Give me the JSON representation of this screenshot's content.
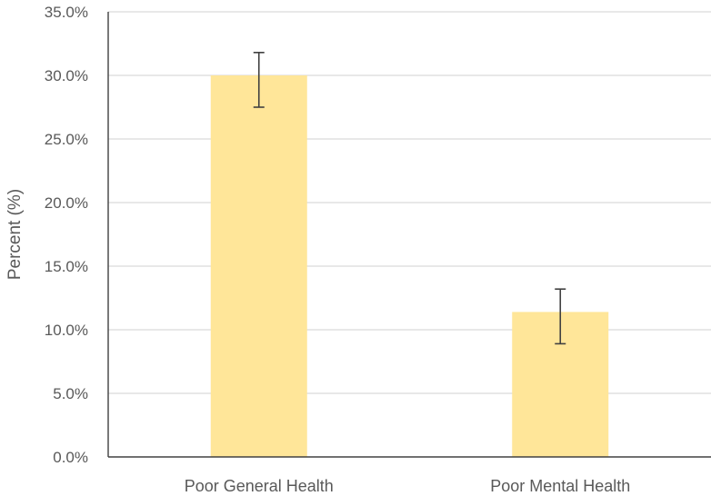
{
  "chart_data": {
    "type": "bar",
    "title": "",
    "xlabel": "",
    "ylabel": "Percent (%)",
    "categories": [
      "Poor General Health",
      "Poor Mental Health"
    ],
    "values": [
      30.0,
      11.4
    ],
    "error_bars": [
      {
        "low": 27.5,
        "high": 31.8
      },
      {
        "low": 8.9,
        "high": 13.2
      }
    ],
    "ylim": [
      0,
      35
    ],
    "yticks": [
      0,
      5,
      10,
      15,
      20,
      25,
      30,
      35
    ],
    "ytick_labels": [
      "0.0%",
      "5.0%",
      "10.0%",
      "15.0%",
      "20.0%",
      "25.0%",
      "30.0%",
      "35.0%"
    ],
    "grid": true,
    "legend": "none",
    "colors": {
      "bar": "#FFE699",
      "grid": "#D9D9D9",
      "axis": "#404040",
      "error_bar": "#404040",
      "text": "#595959"
    }
  }
}
